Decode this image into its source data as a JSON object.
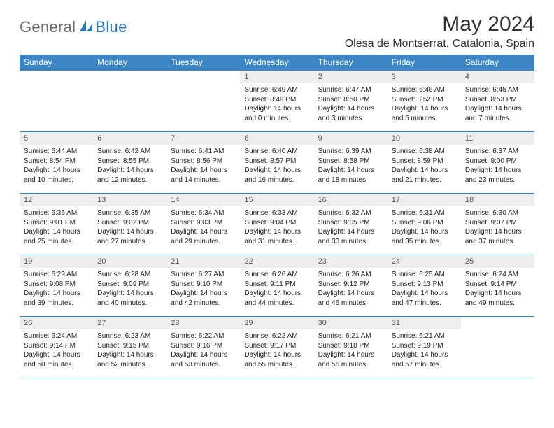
{
  "logo": {
    "general": "General",
    "blue": "Blue"
  },
  "title": "May 2024",
  "location": "Olesa de Montserrat, Catalonia, Spain",
  "colors": {
    "header_bg": "#3d86c6",
    "header_text": "#ffffff",
    "daynum_bg": "#eeeeee",
    "daynum_text": "#555555",
    "body_text": "#222222",
    "border": "#3d86c6",
    "logo_gray": "#6b6b6b",
    "logo_blue": "#2b77b8"
  },
  "weekdays": [
    "Sunday",
    "Monday",
    "Tuesday",
    "Wednesday",
    "Thursday",
    "Friday",
    "Saturday"
  ],
  "weeks": [
    [
      null,
      null,
      null,
      {
        "d": "1",
        "sr": "6:49 AM",
        "ss": "8:49 PM",
        "dl": "14 hours and 0 minutes."
      },
      {
        "d": "2",
        "sr": "6:47 AM",
        "ss": "8:50 PM",
        "dl": "14 hours and 3 minutes."
      },
      {
        "d": "3",
        "sr": "6:46 AM",
        "ss": "8:52 PM",
        "dl": "14 hours and 5 minutes."
      },
      {
        "d": "4",
        "sr": "6:45 AM",
        "ss": "8:53 PM",
        "dl": "14 hours and 7 minutes."
      }
    ],
    [
      {
        "d": "5",
        "sr": "6:44 AM",
        "ss": "8:54 PM",
        "dl": "14 hours and 10 minutes."
      },
      {
        "d": "6",
        "sr": "6:42 AM",
        "ss": "8:55 PM",
        "dl": "14 hours and 12 minutes."
      },
      {
        "d": "7",
        "sr": "6:41 AM",
        "ss": "8:56 PM",
        "dl": "14 hours and 14 minutes."
      },
      {
        "d": "8",
        "sr": "6:40 AM",
        "ss": "8:57 PM",
        "dl": "14 hours and 16 minutes."
      },
      {
        "d": "9",
        "sr": "6:39 AM",
        "ss": "8:58 PM",
        "dl": "14 hours and 18 minutes."
      },
      {
        "d": "10",
        "sr": "6:38 AM",
        "ss": "8:59 PM",
        "dl": "14 hours and 21 minutes."
      },
      {
        "d": "11",
        "sr": "6:37 AM",
        "ss": "9:00 PM",
        "dl": "14 hours and 23 minutes."
      }
    ],
    [
      {
        "d": "12",
        "sr": "6:36 AM",
        "ss": "9:01 PM",
        "dl": "14 hours and 25 minutes."
      },
      {
        "d": "13",
        "sr": "6:35 AM",
        "ss": "9:02 PM",
        "dl": "14 hours and 27 minutes."
      },
      {
        "d": "14",
        "sr": "6:34 AM",
        "ss": "9:03 PM",
        "dl": "14 hours and 29 minutes."
      },
      {
        "d": "15",
        "sr": "6:33 AM",
        "ss": "9:04 PM",
        "dl": "14 hours and 31 minutes."
      },
      {
        "d": "16",
        "sr": "6:32 AM",
        "ss": "9:05 PM",
        "dl": "14 hours and 33 minutes."
      },
      {
        "d": "17",
        "sr": "6:31 AM",
        "ss": "9:06 PM",
        "dl": "14 hours and 35 minutes."
      },
      {
        "d": "18",
        "sr": "6:30 AM",
        "ss": "9:07 PM",
        "dl": "14 hours and 37 minutes."
      }
    ],
    [
      {
        "d": "19",
        "sr": "6:29 AM",
        "ss": "9:08 PM",
        "dl": "14 hours and 39 minutes."
      },
      {
        "d": "20",
        "sr": "6:28 AM",
        "ss": "9:09 PM",
        "dl": "14 hours and 40 minutes."
      },
      {
        "d": "21",
        "sr": "6:27 AM",
        "ss": "9:10 PM",
        "dl": "14 hours and 42 minutes."
      },
      {
        "d": "22",
        "sr": "6:26 AM",
        "ss": "9:11 PM",
        "dl": "14 hours and 44 minutes."
      },
      {
        "d": "23",
        "sr": "6:26 AM",
        "ss": "9:12 PM",
        "dl": "14 hours and 46 minutes."
      },
      {
        "d": "24",
        "sr": "6:25 AM",
        "ss": "9:13 PM",
        "dl": "14 hours and 47 minutes."
      },
      {
        "d": "25",
        "sr": "6:24 AM",
        "ss": "9:14 PM",
        "dl": "14 hours and 49 minutes."
      }
    ],
    [
      {
        "d": "26",
        "sr": "6:24 AM",
        "ss": "9:14 PM",
        "dl": "14 hours and 50 minutes."
      },
      {
        "d": "27",
        "sr": "6:23 AM",
        "ss": "9:15 PM",
        "dl": "14 hours and 52 minutes."
      },
      {
        "d": "28",
        "sr": "6:22 AM",
        "ss": "9:16 PM",
        "dl": "14 hours and 53 minutes."
      },
      {
        "d": "29",
        "sr": "6:22 AM",
        "ss": "9:17 PM",
        "dl": "14 hours and 55 minutes."
      },
      {
        "d": "30",
        "sr": "6:21 AM",
        "ss": "9:18 PM",
        "dl": "14 hours and 56 minutes."
      },
      {
        "d": "31",
        "sr": "6:21 AM",
        "ss": "9:19 PM",
        "dl": "14 hours and 57 minutes."
      },
      null
    ]
  ],
  "labels": {
    "sunrise": "Sunrise:",
    "sunset": "Sunset:",
    "daylight": "Daylight:"
  }
}
